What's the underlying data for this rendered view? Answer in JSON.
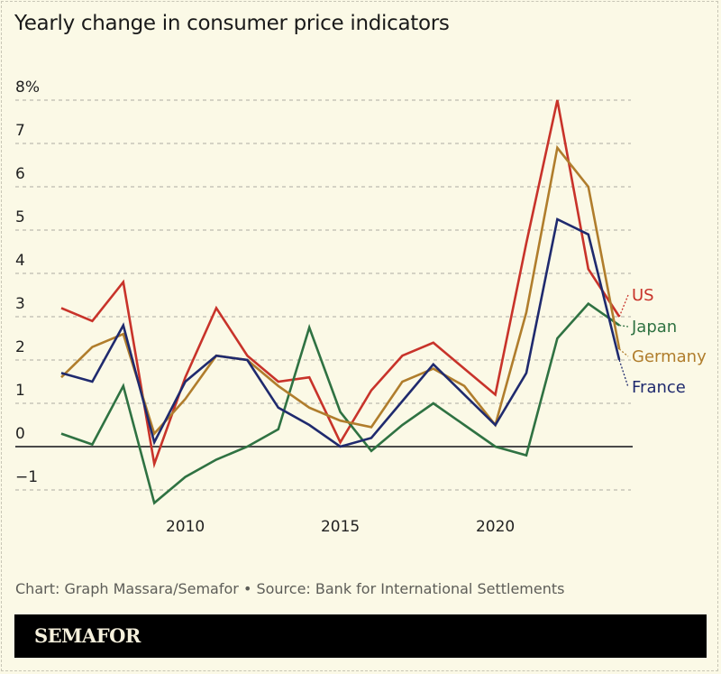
{
  "title": "Yearly change in consumer price indicators",
  "source": "Chart: Graph Massara/Semafor • Source: Bank for International Settlements",
  "brand": "SEMAFOR",
  "chart_data": {
    "type": "line",
    "title": "Yearly change in consumer price indicators",
    "x": [
      2006,
      2007,
      2008,
      2009,
      2010,
      2011,
      2012,
      2013,
      2014,
      2015,
      2016,
      2017,
      2018,
      2019,
      2020,
      2021,
      2022,
      2023,
      2024
    ],
    "xticks": [
      {
        "value": 2010,
        "label": "2010"
      },
      {
        "value": 2015,
        "label": "2015"
      },
      {
        "value": 2020,
        "label": "2020"
      }
    ],
    "yticks": [
      {
        "value": 8,
        "label": "8%"
      },
      {
        "value": 7,
        "label": "7"
      },
      {
        "value": 6,
        "label": "6"
      },
      {
        "value": 5,
        "label": "5"
      },
      {
        "value": 4,
        "label": "4"
      },
      {
        "value": 3,
        "label": "3"
      },
      {
        "value": 2,
        "label": "2"
      },
      {
        "value": 1,
        "label": "1"
      },
      {
        "value": 0,
        "label": "0"
      },
      {
        "value": -1,
        "label": "−1"
      }
    ],
    "ylim": [
      -1.6,
      8.3
    ],
    "xlim": [
      2006,
      2024
    ],
    "grid": true,
    "legend": "direct labels at right end",
    "series": [
      {
        "name": "US",
        "color": "#c8332a",
        "values": [
          3.2,
          2.9,
          3.8,
          -0.4,
          1.6,
          3.2,
          2.1,
          1.5,
          1.6,
          0.1,
          1.3,
          2.1,
          2.4,
          1.8,
          1.2,
          4.7,
          8.0,
          4.1,
          3.0
        ]
      },
      {
        "name": "Japan",
        "color": "#2f7242",
        "values": [
          0.3,
          0.05,
          1.4,
          -1.3,
          -0.7,
          -0.3,
          0.0,
          0.4,
          2.75,
          0.8,
          -0.1,
          0.5,
          1.0,
          0.5,
          0.0,
          -0.2,
          2.5,
          3.3,
          2.8
        ]
      },
      {
        "name": "Germany",
        "color": "#b07d2c",
        "values": [
          1.6,
          2.3,
          2.6,
          0.3,
          1.1,
          2.1,
          2.0,
          1.4,
          0.9,
          0.6,
          0.45,
          1.5,
          1.8,
          1.4,
          0.5,
          3.1,
          6.9,
          6.0,
          2.25
        ]
      },
      {
        "name": "France",
        "color": "#1f2a6e",
        "values": [
          1.7,
          1.5,
          2.8,
          0.1,
          1.5,
          2.1,
          2.0,
          0.9,
          0.5,
          0.0,
          0.2,
          1.05,
          1.9,
          1.2,
          0.5,
          1.7,
          5.25,
          4.9,
          2.0
        ]
      }
    ]
  }
}
